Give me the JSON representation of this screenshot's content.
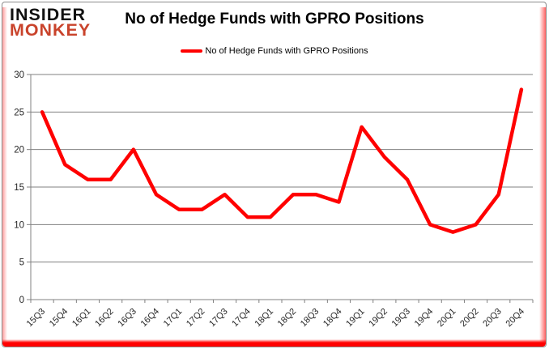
{
  "logo": {
    "line1": "INSIDER",
    "line2": "MONKEY"
  },
  "header": {
    "title": "No of Hedge Funds with GPRO Positions"
  },
  "legend": {
    "label": "No of Hedge Funds with GPRO Positions"
  },
  "colors": {
    "series": "#ff0000",
    "logo_red": "#c9432b",
    "logo_black": "#111111",
    "gridline": "#808080",
    "axis_line": "#808080",
    "axis_text": "#262626",
    "background": "#ffffff"
  },
  "chart_data": {
    "type": "line",
    "title": "No of Hedge Funds with GPRO Positions",
    "categories": [
      "15Q3",
      "15Q4",
      "16Q1",
      "16Q2",
      "16Q3",
      "16Q4",
      "17Q1",
      "17Q2",
      "17Q3",
      "17Q4",
      "18Q1",
      "18Q2",
      "18Q3",
      "18Q4",
      "19Q1",
      "19Q2",
      "19Q3",
      "19Q4",
      "20Q1",
      "20Q2",
      "20Q3",
      "20Q4"
    ],
    "series": [
      {
        "name": "No of Hedge Funds with GPRO Positions",
        "color": "#ff0000",
        "values": [
          25,
          18,
          16,
          16,
          20,
          14,
          12,
          12,
          14,
          11,
          11,
          14,
          14,
          13,
          23,
          19,
          16,
          10,
          9,
          10,
          14,
          28
        ]
      }
    ],
    "ylim": [
      0,
      30
    ],
    "yticks": [
      0,
      5,
      10,
      15,
      20,
      25,
      30
    ],
    "grid": true,
    "legend_position": "top",
    "xlabel": "",
    "ylabel": ""
  }
}
